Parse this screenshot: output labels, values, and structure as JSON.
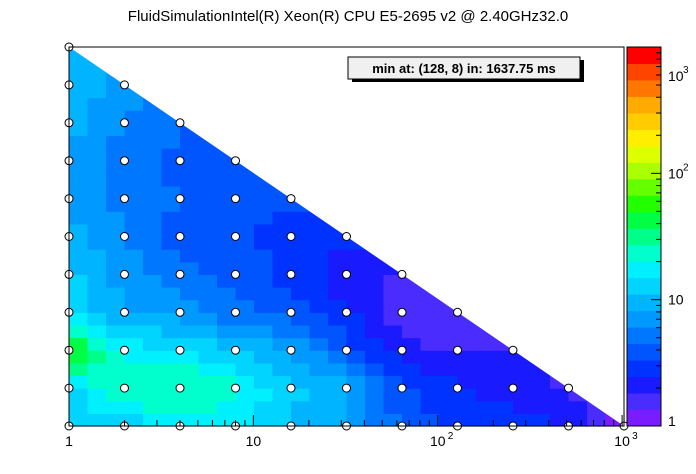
{
  "chart_data": {
    "type": "heatmap",
    "title": "FluidSimulationIntel(R) Xeon(R) CPU E5-2695 v2 @ 2.40GHz32.0",
    "xscale": "log",
    "yscale": "log2",
    "xlim": [
      1,
      1024
    ],
    "ylim": [
      1,
      1024
    ],
    "zscale": "log",
    "zlim": [
      1,
      1000
    ],
    "x_tick_labels": [
      {
        "value": 1,
        "label": "1",
        "sup": ""
      },
      {
        "value": 10,
        "label": "10",
        "sup": ""
      },
      {
        "value": 100,
        "label": "10",
        "sup": "2"
      },
      {
        "value": 1000,
        "label": "10",
        "sup": "3"
      }
    ],
    "z_tick_labels": [
      {
        "value": 1,
        "label": "1",
        "sup": ""
      },
      {
        "value": 10,
        "label": "10",
        "sup": ""
      },
      {
        "value": 100,
        "label": "10",
        "sup": "2"
      },
      {
        "value": 1000,
        "label": "10",
        "sup": "3"
      }
    ],
    "annotation": "min at: (128, 8) in: 1637.75 ms",
    "x": [
      1,
      2,
      4,
      8,
      16,
      32,
      64,
      128,
      256,
      512,
      1024
    ],
    "y": [
      1,
      2,
      4,
      8,
      16,
      32,
      64,
      128,
      256,
      512,
      1024
    ],
    "z": [
      [
        11,
        12,
        18,
        16,
        11,
        9,
        4,
        3,
        3,
        2.5,
        1.2
      ],
      [
        14,
        28,
        30,
        22,
        12,
        9,
        3.5,
        2.5,
        2,
        1.8,
        null
      ],
      [
        60,
        18,
        16,
        11,
        8,
        4,
        2,
        1.7,
        1.9,
        null,
        null
      ],
      [
        14,
        8,
        7,
        5,
        4,
        2.5,
        1.6,
        1.4,
        null,
        null,
        null
      ],
      [
        12,
        7,
        5,
        4,
        3,
        1.9,
        1.8,
        null,
        null,
        null,
        null
      ],
      [
        9,
        6,
        4,
        3.5,
        3,
        2.8,
        null,
        null,
        null,
        null,
        null
      ],
      [
        8,
        5.5,
        4.5,
        4,
        3.5,
        null,
        null,
        null,
        null,
        null,
        null
      ],
      [
        8,
        5,
        4.2,
        4.2,
        null,
        null,
        null,
        null,
        null,
        null,
        null
      ],
      [
        9,
        6,
        4.5,
        null,
        null,
        null,
        null,
        null,
        null,
        null,
        null
      ],
      [
        10,
        7,
        null,
        null,
        null,
        null,
        null,
        null,
        null,
        null,
        null
      ],
      [
        12,
        null,
        null,
        null,
        null,
        null,
        null,
        null,
        null,
        null,
        null
      ]
    ],
    "palette": [
      "#7a1cff",
      "#4a2cff",
      "#1a1aff",
      "#0033ff",
      "#0055ff",
      "#0077ff",
      "#0099ff",
      "#00b4ff",
      "#00d4ff",
      "#00f0ff",
      "#00ffcc",
      "#00ff88",
      "#00ff44",
      "#22ff00",
      "#66ff00",
      "#aaff00",
      "#ddff00",
      "#ffee00",
      "#ffcc00",
      "#ffaa00",
      "#ff7700",
      "#ff4400",
      "#ff0000"
    ]
  }
}
